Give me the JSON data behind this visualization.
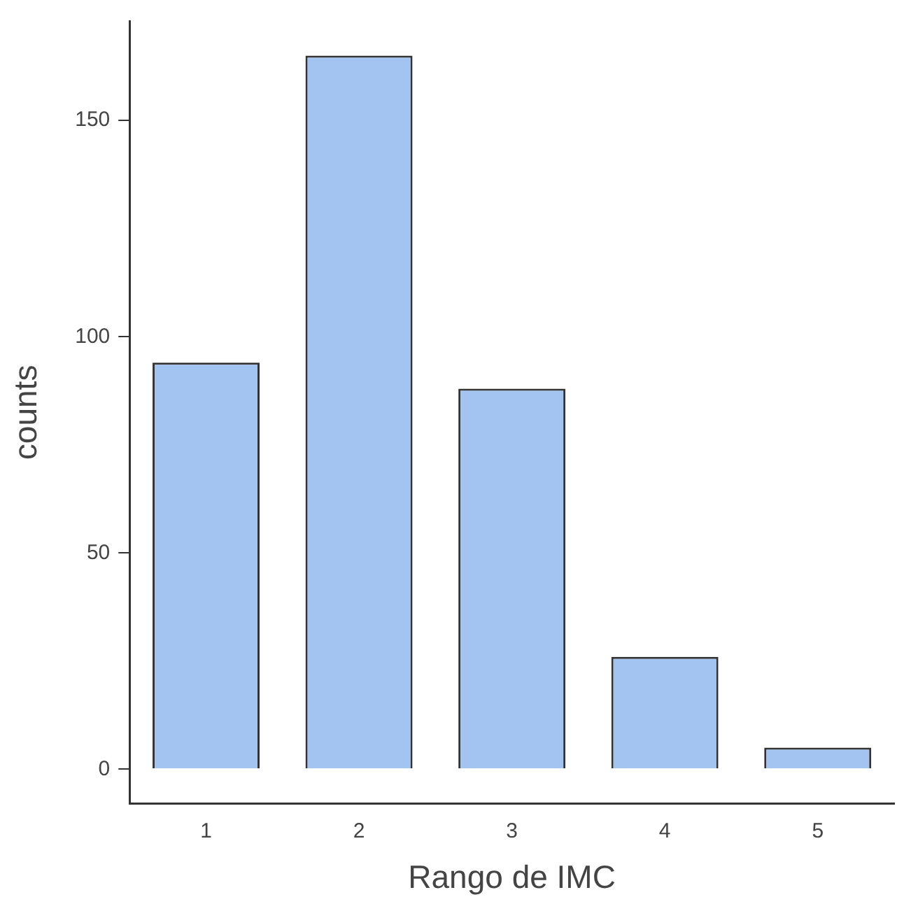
{
  "chart_data": {
    "type": "bar",
    "xlabel": "Rango de IMC",
    "ylabel": "counts",
    "categories": [
      "1",
      "2",
      "3",
      "4",
      "5"
    ],
    "values": [
      94,
      165,
      88,
      26,
      5
    ],
    "color": "#a3c4f0",
    "ylim": [
      -8,
      173
    ],
    "yticks": [
      0,
      50,
      100,
      150
    ]
  }
}
